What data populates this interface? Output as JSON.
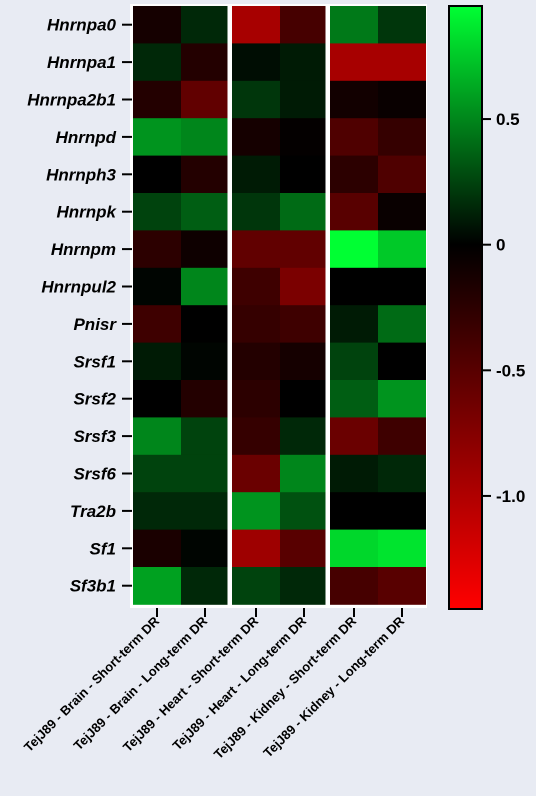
{
  "chart_data": {
    "type": "heatmap",
    "title": "",
    "rows": [
      "Hnrnpa0",
      "Hnrnpa1",
      "Hnrnpa2b1",
      "Hnrnpd",
      "Hnrnph3",
      "Hnrnpk",
      "Hnrnpm",
      "Hnrnpul2",
      "Pnisr",
      "Srsf1",
      "Srsf2",
      "Srsf3",
      "Srsf6",
      "Tra2b",
      "Sf1",
      "Sf3b1"
    ],
    "columns": [
      "TejJ89 - Brain - Short-term DR",
      "TejJ89 - Brain - Long-term DR",
      "TejJ89 - Heart - Short-term DR",
      "TejJ89 - Heart - Long-term DR",
      "TejJ89 - Kidney - Short-term DR",
      "TejJ89 - Kidney - Long-term DR"
    ],
    "column_groups": [
      [
        0,
        1
      ],
      [
        2,
        3
      ],
      [
        4,
        5
      ]
    ],
    "values": [
      [
        -0.12,
        0.15,
        -0.95,
        -0.4,
        0.45,
        0.2
      ],
      [
        0.15,
        -0.2,
        0.05,
        0.1,
        -0.95,
        -0.95
      ],
      [
        -0.2,
        -0.55,
        0.2,
        0.1,
        -0.1,
        -0.05
      ],
      [
        0.55,
        0.5,
        -0.12,
        -0.02,
        -0.45,
        -0.3
      ],
      [
        0.0,
        -0.2,
        0.1,
        0.0,
        -0.25,
        -0.45
      ],
      [
        0.25,
        0.35,
        0.2,
        0.4,
        -0.5,
        -0.05
      ],
      [
        -0.25,
        -0.08,
        -0.55,
        -0.55,
        0.95,
        0.75
      ],
      [
        0.02,
        0.5,
        -0.35,
        -0.7,
        0.0,
        0.0
      ],
      [
        -0.35,
        0.0,
        -0.3,
        -0.35,
        0.1,
        0.4
      ],
      [
        0.1,
        0.02,
        -0.2,
        -0.12,
        0.25,
        0.0
      ],
      [
        0.0,
        -0.2,
        -0.25,
        0.0,
        0.35,
        0.55
      ],
      [
        0.5,
        0.25,
        -0.3,
        0.15,
        -0.6,
        -0.35
      ],
      [
        0.25,
        0.25,
        -0.6,
        0.5,
        0.1,
        0.15
      ],
      [
        0.15,
        0.15,
        0.55,
        0.3,
        0.0,
        0.0
      ],
      [
        -0.15,
        0.02,
        -0.9,
        -0.5,
        0.8,
        0.85
      ],
      [
        0.6,
        0.15,
        0.25,
        0.15,
        -0.4,
        -0.5
      ]
    ],
    "colorbar": {
      "min": -1.45,
      "max": 0.95,
      "ticks": [
        0.5,
        0,
        -0.5,
        -1.0
      ],
      "tick_labels": [
        "0.5",
        "0",
        "-0.5",
        "-1.0"
      ],
      "colors": {
        "high": "#00ff33",
        "mid": "#000000",
        "low": "#ff0000"
      }
    }
  }
}
